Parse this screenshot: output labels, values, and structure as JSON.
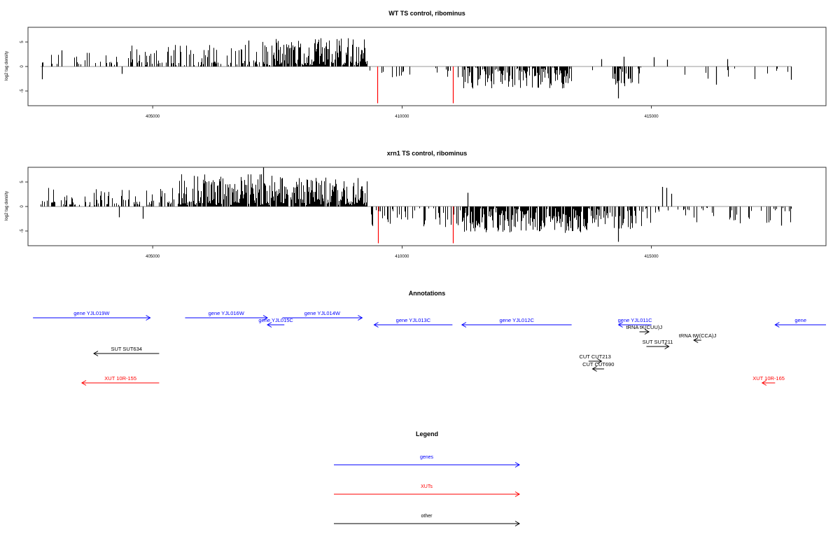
{
  "colors": {
    "black": "#000000",
    "red": "#ff0000",
    "blue": "#0000ff",
    "frame": "#333333",
    "zero": "#9a9a9a"
  },
  "chart_data": [
    {
      "type": "bar",
      "title": "WT TS control, ribominus",
      "ylabel": "log2 tag density",
      "xlim": [
        402500,
        418500
      ],
      "ylim": [
        -8,
        8
      ],
      "x_ticks": [
        405000,
        410000,
        415000
      ],
      "x_tick_labels": [
        "405000",
        "410000",
        "415000"
      ],
      "y_ticks": [
        5,
        0,
        -5
      ],
      "y_tick_labels": [
        "5",
        "0",
        "-5"
      ],
      "grid": false,
      "series": [
        {
          "color": "#000000",
          "segments": [
            {
              "x_start": 402750,
              "x_end": 404200,
              "density": 0.2,
              "mean": 0.8,
              "amp": 2.8,
              "seed": 11
            },
            {
              "x_start": 404200,
              "x_end": 407200,
              "density": 0.35,
              "mean": 1.3,
              "amp": 3.2,
              "seed": 12
            },
            {
              "x_start": 407200,
              "x_end": 409300,
              "density": 0.85,
              "mean": 2.3,
              "amp": 3.5,
              "seed": 13
            },
            {
              "x_start": 409300,
              "x_end": 411200,
              "density": 0.12,
              "mean": -1.1,
              "amp": 1.4,
              "seed": 14
            },
            {
              "x_start": 411200,
              "x_end": 413400,
              "density": 0.7,
              "mean": -2.0,
              "amp": 2.5,
              "seed": 15
            },
            {
              "x_start": 413400,
              "x_end": 414200,
              "density": 0.05,
              "mean": -0.8,
              "amp": 1.2,
              "seed": 16
            },
            {
              "x_start": 414200,
              "x_end": 414800,
              "density": 0.55,
              "mean": -2.0,
              "amp": 2.2,
              "seed": 17
            },
            {
              "x_start": 414800,
              "x_end": 417800,
              "density": 0.04,
              "mean": -0.6,
              "amp": 2.0,
              "seed": 18
            }
          ],
          "bars": [
            {
              "x": 402780,
              "y": -2.6
            },
            {
              "x": 403170,
              "y": 3.3
            },
            {
              "x": 404380,
              "y": -1.5
            },
            {
              "x": 406920,
              "y": 5.3
            },
            {
              "x": 414330,
              "y": -6.5
            },
            {
              "x": 414440,
              "y": 2.0
            },
            {
              "x": 414000,
              "y": 1.5
            },
            {
              "x": 415050,
              "y": 1.9
            },
            {
              "x": 415320,
              "y": 1.4
            },
            {
              "x": 416300,
              "y": -3.7
            },
            {
              "x": 416520,
              "y": 1.5
            },
            {
              "x": 417800,
              "y": -2.7
            }
          ]
        },
        {
          "color": "#ff0000",
          "bars": [
            {
              "x": 409500,
              "y": -7.5
            },
            {
              "x": 411020,
              "y": -7.5
            }
          ]
        }
      ]
    },
    {
      "type": "bar",
      "title": "xrn1 TS control, ribominus",
      "ylabel": "log2 tag density",
      "xlim": [
        402500,
        418500
      ],
      "ylim": [
        -8,
        8
      ],
      "x_ticks": [
        405000,
        410000,
        415000
      ],
      "x_tick_labels": [
        "405000",
        "410000",
        "415000"
      ],
      "y_ticks": [
        5,
        0,
        -5
      ],
      "y_tick_labels": [
        "5",
        "0",
        "-5"
      ],
      "grid": false,
      "series": [
        {
          "color": "#000000",
          "segments": [
            {
              "x_start": 402750,
              "x_end": 405500,
              "density": 0.45,
              "mean": 1.2,
              "amp": 2.6,
              "seed": 21
            },
            {
              "x_start": 405500,
              "x_end": 407800,
              "density": 0.9,
              "mean": 3.0,
              "amp": 3.6,
              "seed": 22
            },
            {
              "x_start": 407800,
              "x_end": 409300,
              "density": 0.9,
              "mean": 2.6,
              "amp": 3.6,
              "seed": 23
            },
            {
              "x_start": 409300,
              "x_end": 411200,
              "density": 0.3,
              "mean": -1.8,
              "amp": 2.4,
              "seed": 24
            },
            {
              "x_start": 411200,
              "x_end": 413800,
              "density": 0.85,
              "mean": -2.8,
              "amp": 2.6,
              "seed": 25
            },
            {
              "x_start": 413800,
              "x_end": 414800,
              "density": 0.5,
              "mean": -2.0,
              "amp": 2.6,
              "seed": 26
            },
            {
              "x_start": 414800,
              "x_end": 417800,
              "density": 0.2,
              "mean": -1.3,
              "amp": 2.6,
              "seed": 27
            }
          ],
          "bars": [
            {
              "x": 407220,
              "y": 8.0
            },
            {
              "x": 414330,
              "y": -7.2
            },
            {
              "x": 415220,
              "y": 4.0
            },
            {
              "x": 415300,
              "y": 3.8
            },
            {
              "x": 415400,
              "y": 2.6
            },
            {
              "x": 404330,
              "y": -2.2
            },
            {
              "x": 404800,
              "y": -2.5
            },
            {
              "x": 411320,
              "y": 2.8
            },
            {
              "x": 417600,
              "y": -3.9
            }
          ]
        },
        {
          "color": "#ff0000",
          "bars": [
            {
              "x": 409520,
              "y": -7.5
            },
            {
              "x": 411020,
              "y": -7.5
            }
          ]
        }
      ]
    }
  ],
  "annotations": {
    "title": "Annotations",
    "features": [
      {
        "label": "gene YJL019W",
        "color": "#0000ff",
        "x_start": 402600,
        "x_end": 404950,
        "strand": "+",
        "row": 0
      },
      {
        "label": "gene YJL016W",
        "color": "#0000ff",
        "x_start": 405650,
        "x_end": 407300,
        "strand": "+",
        "row": 0
      },
      {
        "label": "gene YJL015C",
        "color": "#0000ff",
        "x_start": 407300,
        "x_end": 407640,
        "strand": "-",
        "row": 1
      },
      {
        "label": "gene YJL014W",
        "color": "#0000ff",
        "x_start": 407600,
        "x_end": 409200,
        "strand": "+",
        "row": 0
      },
      {
        "label": "gene YJL013C",
        "color": "#0000ff",
        "x_start": 409440,
        "x_end": 411010,
        "strand": "-",
        "row": 1
      },
      {
        "label": "gene YJL012C",
        "color": "#0000ff",
        "x_start": 411200,
        "x_end": 413400,
        "strand": "-",
        "row": 1
      },
      {
        "label": "gene YJL011C",
        "color": "#0000ff",
        "x_start": 414340,
        "x_end": 415000,
        "strand": "-",
        "row": 1
      },
      {
        "label": "gene",
        "color": "#0000ff",
        "x_start": 417480,
        "x_end": 418500,
        "strand": "-",
        "row": 1
      },
      {
        "label": "tRNA tK(CUU)J",
        "color": "#000000",
        "x_start": 414760,
        "x_end": 414950,
        "strand": "+",
        "row": 2
      },
      {
        "label": "tRNA tW(CCA)J",
        "color": "#000000",
        "x_start": 415850,
        "x_end": 416000,
        "strand": "-",
        "row": 3
      },
      {
        "label": "SUT SUT211",
        "color": "#000000",
        "x_start": 414900,
        "x_end": 415350,
        "strand": "+",
        "row": 4
      },
      {
        "label": "SUT SUT634",
        "color": "#000000",
        "x_start": 403820,
        "x_end": 405130,
        "strand": "-",
        "row": 5
      },
      {
        "label": "CUT CUT213",
        "color": "#000000",
        "x_start": 413740,
        "x_end": 414000,
        "strand": "+",
        "row": 6
      },
      {
        "label": "CUT CUT690",
        "color": "#000000",
        "x_start": 413820,
        "x_end": 414050,
        "strand": "-",
        "row": 7
      },
      {
        "label": "XUT 10R-155",
        "color": "#ff0000",
        "x_start": 403580,
        "x_end": 405130,
        "strand": "-",
        "row": 8
      },
      {
        "label": "XUT 10R-165",
        "color": "#ff0000",
        "x_start": 417220,
        "x_end": 417480,
        "strand": "-",
        "row": 8
      }
    ]
  },
  "legend": {
    "title": "Legend",
    "items": [
      {
        "label": "genes",
        "color": "#0000ff"
      },
      {
        "label": "XUTs",
        "color": "#ff0000"
      },
      {
        "label": "other",
        "color": "#000000"
      }
    ]
  }
}
